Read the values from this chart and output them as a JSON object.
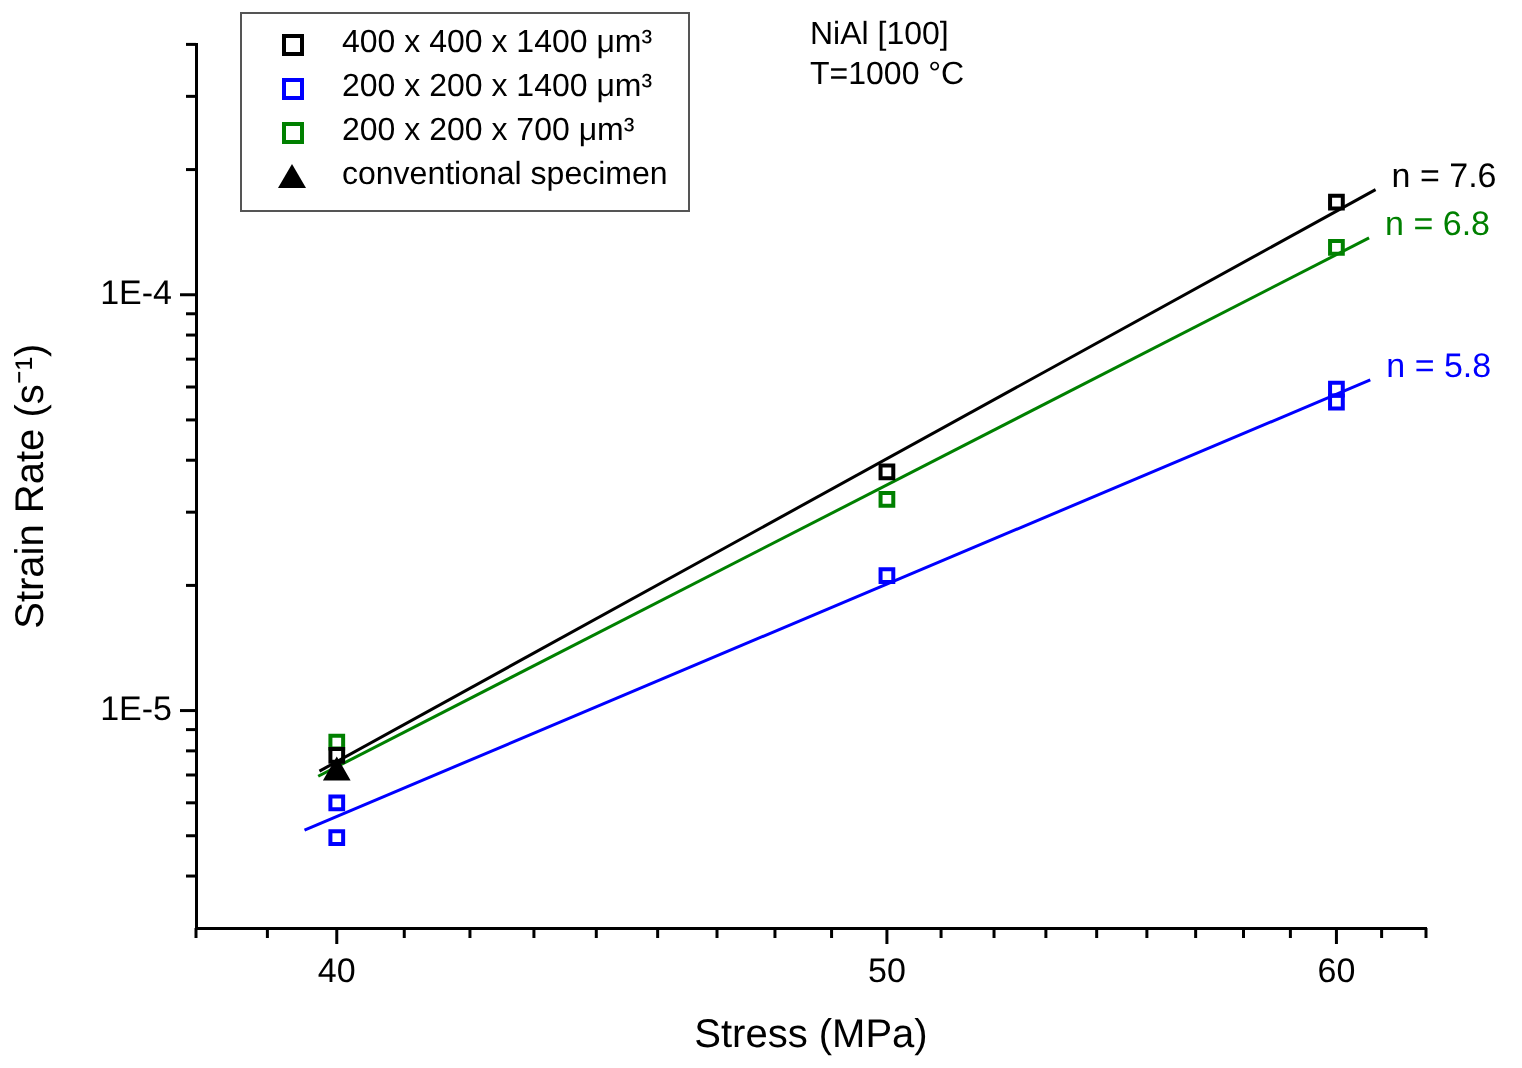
{
  "chart_data": {
    "type": "scatter",
    "xlabel": "Stress (MPa)",
    "ylabel": "Strain Rate (s⁻¹)",
    "annotations": [
      "NiAl [100]",
      "T=1000 °C"
    ],
    "log": "xy",
    "grid": false,
    "legend": "top left",
    "xlim": [
      37.78,
      62.22
    ],
    "ylim": [
      3e-06,
      0.0004
    ],
    "xticks": [
      {
        "value": 37.78,
        "label": null
      },
      {
        "value": 38.89,
        "label": null
      },
      40,
      {
        "value": 41.11,
        "label": null
      },
      {
        "value": 42.22,
        "label": null
      },
      {
        "value": 43.33,
        "label": null
      },
      {
        "value": 44.44,
        "label": null
      },
      {
        "value": 45.56,
        "label": null
      },
      {
        "value": 46.67,
        "label": null
      },
      {
        "value": 47.78,
        "label": null
      },
      {
        "value": 48.89,
        "label": null
      },
      50,
      {
        "value": 51.11,
        "label": null
      },
      {
        "value": 52.22,
        "label": null
      },
      {
        "value": 53.33,
        "label": null
      },
      {
        "value": 54.44,
        "label": null
      },
      {
        "value": 55.56,
        "label": null
      },
      {
        "value": 56.67,
        "label": null
      },
      {
        "value": 57.78,
        "label": null
      },
      {
        "value": 58.89,
        "label": null
      },
      60,
      {
        "value": 61.11,
        "label": null
      },
      {
        "value": 62.22,
        "label": null
      }
    ],
    "yticks": [
      {
        "value": 4e-06,
        "label": null
      },
      {
        "value": 5e-06,
        "label": null
      },
      {
        "value": 6e-06,
        "label": null
      },
      {
        "value": 7e-06,
        "label": null
      },
      {
        "value": 8e-06,
        "label": null
      },
      {
        "value": 9e-06,
        "label": null
      },
      {
        "value": 1e-05,
        "label": "1E-5"
      },
      {
        "value": 2e-05,
        "label": null
      },
      {
        "value": 3e-05,
        "label": null
      },
      {
        "value": 4e-05,
        "label": null
      },
      {
        "value": 5e-05,
        "label": null
      },
      {
        "value": 6e-05,
        "label": null
      },
      {
        "value": 7e-05,
        "label": null
      },
      {
        "value": 8e-05,
        "label": null
      },
      {
        "value": 9e-05,
        "label": null
      },
      {
        "value": 0.0001,
        "label": "1E-4"
      },
      {
        "value": 0.0002,
        "label": null
      },
      {
        "value": 0.0003,
        "label": null
      },
      {
        "value": 0.0004,
        "label": null
      }
    ],
    "series": [
      {
        "type": "scatter",
        "name": "400 x 400 x 1400 μm³",
        "color": "#000000",
        "marker": "square",
        "x": [
          40,
          50,
          60
        ],
        "values": [
          7.8e-06,
          3.75e-05,
          0.000167
        ]
      },
      {
        "type": "scatter",
        "name": "200 x 200 x 1400 μm³",
        "color": "#0000ff",
        "marker": "square",
        "x": [
          40,
          40,
          50,
          60,
          60
        ],
        "values": [
          6e-06,
          4.95e-06,
          2.11e-05,
          5.93e-05,
          5.52e-05
        ]
      },
      {
        "type": "scatter",
        "name": "200 x 200 x 700 μm³",
        "color": "#008000",
        "marker": "square",
        "x": [
          40,
          50,
          60
        ],
        "values": [
          8.4e-06,
          3.22e-05,
          0.00013
        ]
      },
      {
        "type": "scatter",
        "name": "conventional specimen",
        "color": "#000000",
        "marker": "triangle",
        "x": [
          40
        ],
        "values": [
          7.1e-06
        ]
      },
      {
        "type": "line",
        "name": "n = 7.6",
        "color": "#000000",
        "marker": "none",
        "line_style": "solid",
        "x": [
          39.72,
          60.96
        ],
        "values": [
          7.15e-06,
          0.000179
        ]
      },
      {
        "type": "line",
        "name": "n = 6.8",
        "color": "#008000",
        "marker": "none",
        "line_style": "solid",
        "x": [
          39.7,
          60.8
        ],
        "values": [
          6.95e-06,
          0.000137
        ]
      },
      {
        "type": "line",
        "name": "n = 5.8",
        "color": "#0000ff",
        "marker": "none",
        "line_style": "solid",
        "x": [
          39.48,
          60.83
        ],
        "values": [
          5.16e-06,
          6.24e-05
        ]
      }
    ]
  }
}
